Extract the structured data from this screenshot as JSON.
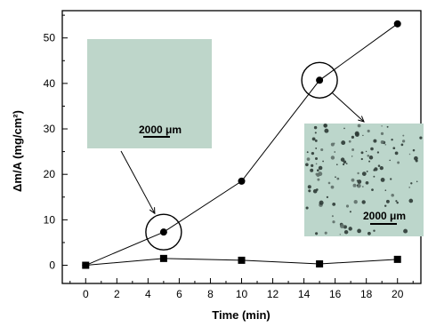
{
  "chart_data": {
    "type": "scatter",
    "title": "",
    "xlabel": "Time (min)",
    "ylabel": "Δm/A (mg/cm²)",
    "xlim": [
      -1.5,
      21.5
    ],
    "ylim": [
      -4,
      56
    ],
    "xticks": [
      "0",
      "2",
      "4",
      "6",
      "8",
      "10",
      "12",
      "14",
      "16",
      "18",
      "20"
    ],
    "yticks": [
      "0",
      "10",
      "20",
      "30",
      "40",
      "50"
    ],
    "grid": false,
    "series": [
      {
        "marker": "circle",
        "color": "#000000",
        "x": [
          0,
          5,
          10,
          15,
          20
        ],
        "y": [
          0,
          7.3,
          18.5,
          40.7,
          53.1
        ]
      },
      {
        "marker": "square",
        "color": "#000000",
        "x": [
          0,
          5,
          10,
          15,
          20
        ],
        "y": [
          0,
          1.5,
          1.1,
          0.3,
          1.3
        ]
      }
    ],
    "annotations": [
      {
        "kind": "circle-callout",
        "target_x": 5,
        "target_y": 7.3,
        "inset": "left"
      },
      {
        "kind": "circle-callout",
        "target_x": 15,
        "target_y": 40.7,
        "inset": "right"
      }
    ],
    "insets": [
      {
        "name": "inset-left",
        "description": "micrograph",
        "scale_label": "2000 μm"
      },
      {
        "name": "inset-right",
        "description": "micrograph",
        "scale_label": "2000 μm"
      }
    ]
  }
}
